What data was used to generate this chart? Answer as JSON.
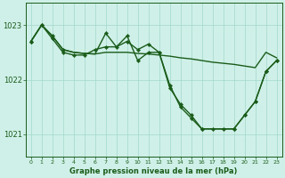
{
  "bg_color": "#cff0e8",
  "grid_color": "#a0d8cc",
  "line_color": "#1a5c1a",
  "marker_color": "#1a5c1a",
  "title": "Graphe pression niveau de la mer (hPa)",
  "xlim": [
    -0.5,
    23.5
  ],
  "ylim": [
    1020.6,
    1023.4
  ],
  "yticks": [
    1021,
    1022,
    1023
  ],
  "xticks": [
    0,
    1,
    2,
    3,
    4,
    5,
    6,
    7,
    8,
    9,
    10,
    11,
    12,
    13,
    14,
    15,
    16,
    17,
    18,
    19,
    20,
    21,
    22,
    23
  ],
  "series": [
    {
      "x": [
        0,
        1,
        2,
        3,
        4,
        5,
        6,
        7,
        8,
        9,
        10,
        11,
        12,
        13,
        14,
        15,
        16,
        17,
        18,
        19,
        20,
        21,
        22,
        23
      ],
      "y": [
        1022.7,
        1023.0,
        1022.8,
        1022.55,
        1022.5,
        1022.48,
        1022.47,
        1022.5,
        1022.5,
        1022.5,
        1022.48,
        1022.47,
        1022.45,
        1022.43,
        1022.4,
        1022.38,
        1022.35,
        1022.32,
        1022.3,
        1022.28,
        1022.25,
        1022.22,
        1022.5,
        1022.4
      ],
      "has_markers": false,
      "linewidth": 1.0
    },
    {
      "x": [
        0,
        1,
        2,
        3,
        4,
        5,
        6,
        7,
        8,
        9,
        10,
        11,
        12,
        13,
        14,
        15,
        16,
        17,
        18,
        19,
        20,
        21,
        22,
        23
      ],
      "y": [
        1022.7,
        1023.0,
        1022.8,
        1022.55,
        1022.5,
        1022.48,
        1022.47,
        1022.85,
        1022.6,
        1022.7,
        1022.55,
        1022.65,
        1022.5,
        1021.85,
        1021.55,
        1021.35,
        1021.1,
        1021.1,
        1021.1,
        1021.1,
        1021.35,
        1021.6,
        1022.15,
        1022.35
      ],
      "has_markers": true,
      "marker_x": [
        0,
        1,
        2,
        3,
        7,
        9,
        10,
        11,
        12,
        13,
        14,
        15,
        16,
        19,
        20,
        21,
        22,
        23
      ],
      "marker_y": [
        1022.7,
        1023.0,
        1022.8,
        1022.55,
        1022.85,
        1022.7,
        1022.55,
        1022.65,
        1022.5,
        1021.85,
        1021.55,
        1021.35,
        1021.1,
        1021.1,
        1021.35,
        1021.6,
        1022.15,
        1022.35
      ],
      "linewidth": 1.0
    },
    {
      "x": [
        0,
        1,
        2,
        3,
        4,
        5,
        6,
        7,
        8,
        9,
        10,
        11,
        12,
        13,
        14,
        15,
        16,
        17,
        18,
        19,
        20,
        21,
        22,
        23
      ],
      "y": [
        1022.7,
        1023.0,
        1022.75,
        1022.5,
        1022.45,
        1022.45,
        1022.55,
        1022.6,
        1022.6,
        1022.8,
        1022.35,
        1022.5,
        1022.5,
        1021.9,
        1021.5,
        1021.3,
        1021.1,
        1021.1,
        1021.1,
        1021.1,
        1021.35,
        1021.6,
        1022.15,
        1022.35
      ],
      "has_markers": true,
      "marker_x": [
        0,
        1,
        2,
        3,
        4,
        5,
        6,
        7,
        8,
        9,
        10,
        11,
        12,
        13,
        14,
        15,
        16,
        17,
        18,
        19,
        20,
        21,
        22,
        23
      ],
      "marker_y": [
        1022.7,
        1023.0,
        1022.75,
        1022.5,
        1022.45,
        1022.45,
        1022.55,
        1022.6,
        1022.6,
        1022.8,
        1022.35,
        1022.5,
        1022.5,
        1021.9,
        1021.5,
        1021.3,
        1021.1,
        1021.1,
        1021.1,
        1021.1,
        1021.35,
        1021.6,
        1022.15,
        1022.35
      ],
      "linewidth": 1.0
    }
  ]
}
